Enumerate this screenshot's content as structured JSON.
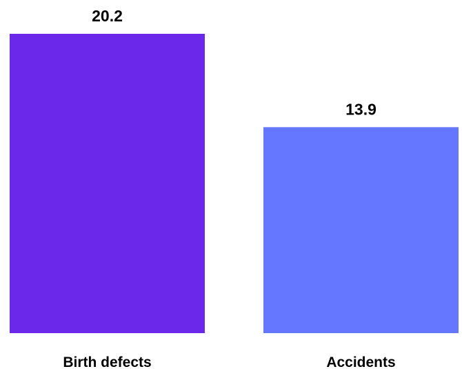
{
  "chart_data": {
    "type": "bar",
    "categories": [
      "Birth defects",
      "Accidents"
    ],
    "values": [
      20.2,
      13.9
    ],
    "value_labels": [
      "20.2",
      "13.9"
    ],
    "colors": [
      "#6c28ea",
      "#6677ff"
    ],
    "ylim": [
      0,
      20.2
    ],
    "grid": false,
    "legend": "none"
  }
}
